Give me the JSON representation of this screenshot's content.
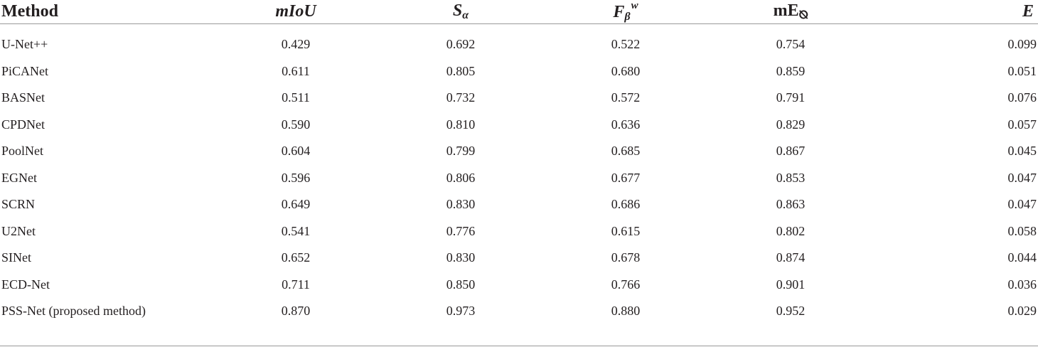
{
  "table": {
    "columns": [
      {
        "label": "Method"
      },
      {
        "label": "mIoU"
      },
      {
        "label": "S",
        "sub": "α"
      },
      {
        "label": "F",
        "sub": "β",
        "sup": "w"
      },
      {
        "label": "mE",
        "sub": "⦰"
      },
      {
        "label": "E"
      }
    ],
    "rows": [
      {
        "method": "U-Net++",
        "miou": "0.429",
        "s_alpha": "0.692",
        "f_beta_w": "0.522",
        "m_e": "0.754",
        "e": "0.099"
      },
      {
        "method": "PiCANet",
        "miou": "0.611",
        "s_alpha": "0.805",
        "f_beta_w": "0.680",
        "m_e": "0.859",
        "e": "0.051"
      },
      {
        "method": "BASNet",
        "miou": "0.511",
        "s_alpha": "0.732",
        "f_beta_w": "0.572",
        "m_e": "0.791",
        "e": "0.076"
      },
      {
        "method": "CPDNet",
        "miou": "0.590",
        "s_alpha": "0.810",
        "f_beta_w": "0.636",
        "m_e": "0.829",
        "e": "0.057"
      },
      {
        "method": "PoolNet",
        "miou": "0.604",
        "s_alpha": "0.799",
        "f_beta_w": "0.685",
        "m_e": "0.867",
        "e": "0.045"
      },
      {
        "method": "EGNet",
        "miou": "0.596",
        "s_alpha": "0.806",
        "f_beta_w": "0.677",
        "m_e": "0.853",
        "e": "0.047"
      },
      {
        "method": "SCRN",
        "miou": "0.649",
        "s_alpha": "0.830",
        "f_beta_w": "0.686",
        "m_e": "0.863",
        "e": "0.047"
      },
      {
        "method": "U2Net",
        "miou": "0.541",
        "s_alpha": "0.776",
        "f_beta_w": "0.615",
        "m_e": "0.802",
        "e": "0.058"
      },
      {
        "method": "SINet",
        "miou": "0.652",
        "s_alpha": "0.830",
        "f_beta_w": "0.678",
        "m_e": "0.874",
        "e": "0.044"
      },
      {
        "method": "ECD-Net",
        "miou": "0.711",
        "s_alpha": "0.850",
        "f_beta_w": "0.766",
        "m_e": "0.901",
        "e": "0.036"
      },
      {
        "method": "PSS-Net (proposed method)",
        "miou": "0.870",
        "s_alpha": "0.973",
        "f_beta_w": "0.880",
        "m_e": "0.952",
        "e": "0.029"
      }
    ]
  }
}
